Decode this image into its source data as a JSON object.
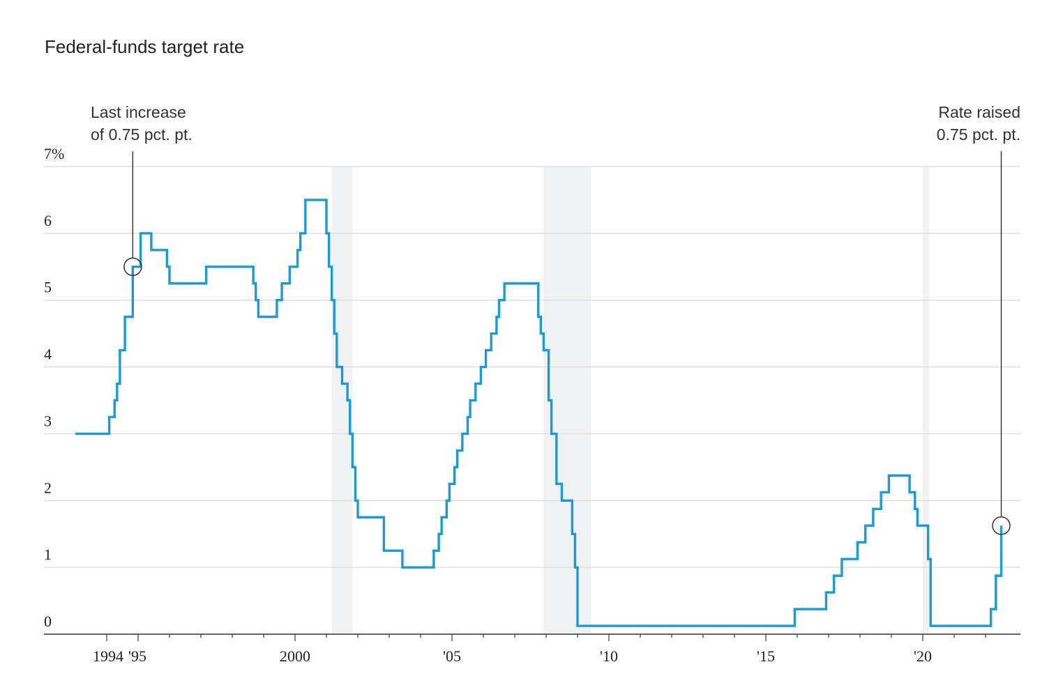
{
  "title": "Federal-funds target rate",
  "chart_data": {
    "type": "line",
    "step": "post",
    "title": "Federal-funds target rate",
    "xlabel": "",
    "ylabel": "",
    "xlim": [
      1993.0,
      2023.0
    ],
    "ylim": [
      0,
      7
    ],
    "grid": true,
    "y_ticks": [
      0,
      1,
      2,
      3,
      4,
      5,
      6,
      7
    ],
    "y_tick_labels": [
      "0",
      "1",
      "2",
      "3",
      "4",
      "5",
      "6",
      "7%"
    ],
    "x_ticks": [
      1994,
      1995,
      2000,
      2005,
      2010,
      2015,
      2020
    ],
    "x_tick_labels": [
      "1994",
      "'95",
      "2000",
      "'05",
      "'10",
      "'15",
      "'20"
    ],
    "line_color": "#1a9ad6",
    "recession_color": "#f0f1f2",
    "recessions": [
      [
        2001.17,
        2001.83
      ],
      [
        2007.92,
        2009.42
      ],
      [
        2020.0,
        2020.2
      ]
    ],
    "series": [
      {
        "points": [
          [
            1993.0,
            3.0
          ],
          [
            1994.08,
            3.25
          ],
          [
            1994.25,
            3.5
          ],
          [
            1994.33,
            3.75
          ],
          [
            1994.42,
            4.25
          ],
          [
            1994.58,
            4.75
          ],
          [
            1994.83,
            5.5
          ],
          [
            1995.08,
            6.0
          ],
          [
            1995.42,
            5.75
          ],
          [
            1995.92,
            5.5
          ],
          [
            1996.0,
            5.25
          ],
          [
            1997.17,
            5.5
          ],
          [
            1998.67,
            5.25
          ],
          [
            1998.75,
            5.0
          ],
          [
            1998.83,
            4.75
          ],
          [
            1999.42,
            5.0
          ],
          [
            1999.58,
            5.25
          ],
          [
            1999.83,
            5.5
          ],
          [
            2000.08,
            5.75
          ],
          [
            2000.17,
            6.0
          ],
          [
            2000.33,
            6.5
          ],
          [
            2001.0,
            6.0
          ],
          [
            2001.08,
            5.5
          ],
          [
            2001.17,
            5.0
          ],
          [
            2001.25,
            4.5
          ],
          [
            2001.33,
            4.0
          ],
          [
            2001.5,
            3.75
          ],
          [
            2001.67,
            3.5
          ],
          [
            2001.75,
            3.0
          ],
          [
            2001.83,
            2.5
          ],
          [
            2001.92,
            2.0
          ],
          [
            2002.0,
            1.75
          ],
          [
            2002.83,
            1.25
          ],
          [
            2003.42,
            1.0
          ],
          [
            2004.42,
            1.25
          ],
          [
            2004.58,
            1.5
          ],
          [
            2004.67,
            1.75
          ],
          [
            2004.83,
            2.0
          ],
          [
            2004.92,
            2.25
          ],
          [
            2005.08,
            2.5
          ],
          [
            2005.17,
            2.75
          ],
          [
            2005.33,
            3.0
          ],
          [
            2005.5,
            3.25
          ],
          [
            2005.58,
            3.5
          ],
          [
            2005.75,
            3.75
          ],
          [
            2005.92,
            4.0
          ],
          [
            2006.08,
            4.25
          ],
          [
            2006.25,
            4.5
          ],
          [
            2006.42,
            4.75
          ],
          [
            2006.5,
            5.0
          ],
          [
            2006.67,
            5.25
          ],
          [
            2007.75,
            4.75
          ],
          [
            2007.83,
            4.5
          ],
          [
            2007.92,
            4.25
          ],
          [
            2008.08,
            3.5
          ],
          [
            2008.17,
            3.0
          ],
          [
            2008.33,
            2.25
          ],
          [
            2008.5,
            2.0
          ],
          [
            2008.83,
            1.5
          ],
          [
            2008.92,
            1.0
          ],
          [
            2009.0,
            0.125
          ],
          [
            2015.92,
            0.375
          ],
          [
            2016.92,
            0.625
          ],
          [
            2017.17,
            0.875
          ],
          [
            2017.42,
            1.125
          ],
          [
            2017.92,
            1.375
          ],
          [
            2018.17,
            1.625
          ],
          [
            2018.42,
            1.875
          ],
          [
            2018.67,
            2.125
          ],
          [
            2018.92,
            2.375
          ],
          [
            2019.58,
            2.125
          ],
          [
            2019.75,
            1.875
          ],
          [
            2019.83,
            1.625
          ],
          [
            2020.17,
            1.125
          ],
          [
            2020.25,
            0.125
          ],
          [
            2022.17,
            0.375
          ],
          [
            2022.33,
            0.875
          ],
          [
            2022.5,
            1.625
          ]
        ]
      }
    ],
    "annotations": [
      {
        "lines": [
          "Last increase",
          "of 0.75 pct. pt."
        ],
        "x": 1994.83,
        "y": 5.5,
        "align": "left"
      },
      {
        "lines": [
          "Rate raised",
          "0.75 pct. pt."
        ],
        "x": 2022.5,
        "y": 1.625,
        "align": "right"
      }
    ]
  }
}
